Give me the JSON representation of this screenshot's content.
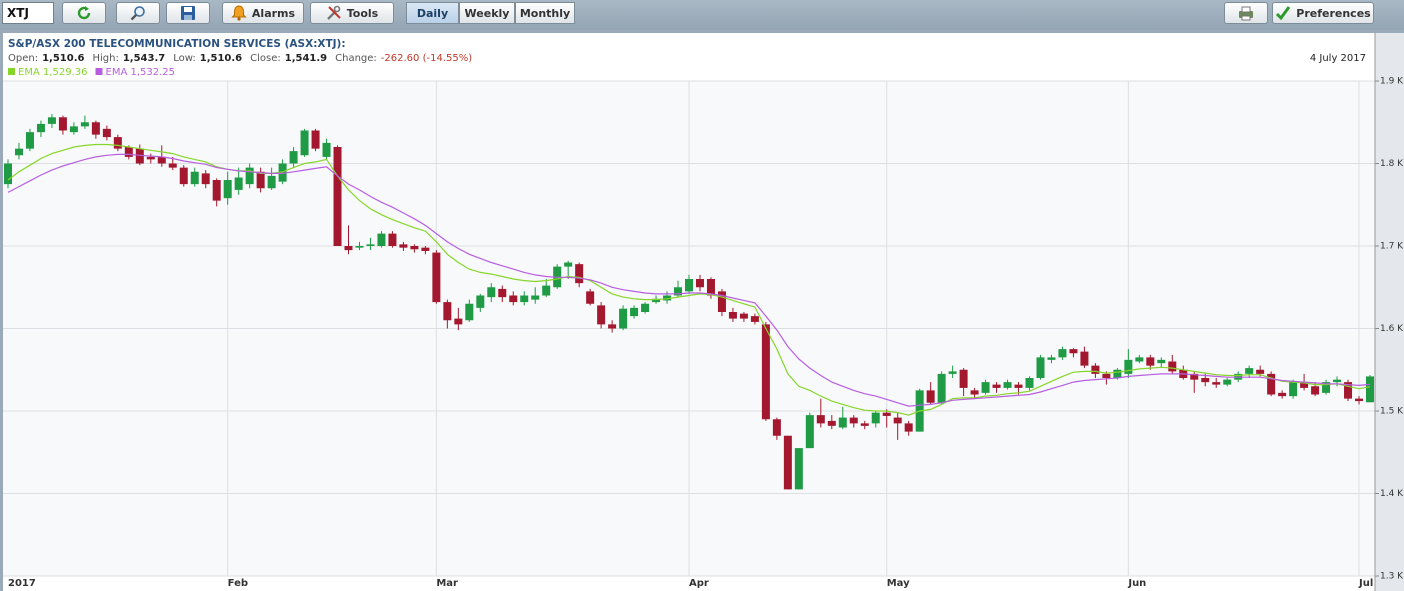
{
  "toolbar": {
    "symbol": "XTJ",
    "alarms": "Alarms",
    "tools": "Tools",
    "periods": [
      "Daily",
      "Weekly",
      "Monthly"
    ],
    "preferences": "Preferences"
  },
  "chart_data": {
    "type": "candlestick",
    "title": "S&P/ASX 200 TELECOMMUNICATION SERVICES (ASX:XTJ):",
    "quote": [
      {
        "label": "Open:",
        "value": "1,510.6"
      },
      {
        "label": "High:",
        "value": "1,543.7"
      },
      {
        "label": "Low:",
        "value": "1,510.6"
      },
      {
        "label": "Close:",
        "value": "1,541.9"
      }
    ],
    "change_label": "Change:",
    "change": "-262.60 (-14.55%)",
    "change_color": "#c0392b",
    "date": "4 July 2017",
    "categories": [
      "2017",
      null,
      null,
      null,
      null,
      null,
      null,
      null,
      null,
      null,
      null,
      null,
      null,
      null,
      null,
      null,
      null,
      null,
      null,
      null,
      "Feb",
      null,
      null,
      null,
      null,
      null,
      null,
      null,
      null,
      null,
      null,
      null,
      null,
      null,
      null,
      null,
      null,
      null,
      null,
      "Mar",
      null,
      null,
      null,
      null,
      null,
      null,
      null,
      null,
      null,
      null,
      null,
      null,
      null,
      null,
      null,
      null,
      null,
      null,
      null,
      null,
      null,
      null,
      "Apr",
      null,
      null,
      null,
      null,
      null,
      null,
      null,
      null,
      null,
      null,
      null,
      null,
      null,
      null,
      null,
      null,
      null,
      "May",
      null,
      null,
      null,
      null,
      null,
      null,
      null,
      null,
      null,
      null,
      null,
      null,
      null,
      null,
      null,
      null,
      null,
      null,
      null,
      null,
      null,
      "Jun",
      null,
      null,
      null,
      null,
      null,
      null,
      null,
      null,
      null,
      null,
      null,
      null,
      null,
      null,
      null,
      null,
      null,
      null,
      null,
      null,
      "Jul",
      null
    ],
    "open": [
      1775,
      1810,
      1818,
      1838,
      1848,
      1856,
      1838,
      1845,
      1850,
      1842,
      1832,
      1820,
      1818,
      1808,
      1808,
      1800,
      1795,
      1775,
      1788,
      1780,
      1758,
      1768,
      1775,
      1790,
      1770,
      1778,
      1800,
      1810,
      1840,
      1808,
      1820,
      1700,
      1698,
      1700,
      1700,
      1715,
      1702,
      1700,
      1698,
      1692,
      1632,
      1612,
      1610,
      1625,
      1638,
      1648,
      1640,
      1632,
      1635,
      1640,
      1650,
      1675,
      1678,
      1645,
      1628,
      1605,
      1600,
      1615,
      1620,
      1632,
      1634,
      1640,
      1645,
      1660,
      1660,
      1645,
      1620,
      1618,
      1615,
      1605,
      1490,
      1470,
      1405,
      1455,
      1495,
      1488,
      1480,
      1492,
      1485,
      1485,
      1498,
      1492,
      1485,
      1475,
      1525,
      1510,
      1545,
      1550,
      1525,
      1522,
      1532,
      1528,
      1532,
      1528,
      1540,
      1562,
      1565,
      1575,
      1572,
      1555,
      1545,
      1540,
      1545,
      1560,
      1565,
      1558,
      1560,
      1550,
      1545,
      1540,
      1535,
      1532,
      1538,
      1545,
      1550,
      1545,
      1522,
      1518,
      1535,
      1530,
      1522,
      1535,
      1535,
      1515,
      1510.6
    ],
    "high": [
      1805,
      1825,
      1842,
      1852,
      1860,
      1858,
      1850,
      1858,
      1852,
      1846,
      1835,
      1822,
      1823,
      1812,
      1822,
      1808,
      1798,
      1795,
      1792,
      1782,
      1790,
      1795,
      1800,
      1795,
      1795,
      1805,
      1820,
      1842,
      1842,
      1830,
      1822,
      1725,
      1705,
      1710,
      1718,
      1718,
      1705,
      1702,
      1700,
      1695,
      1635,
      1625,
      1635,
      1642,
      1655,
      1652,
      1645,
      1645,
      1650,
      1660,
      1678,
      1682,
      1680,
      1648,
      1632,
      1610,
      1628,
      1628,
      1632,
      1640,
      1645,
      1658,
      1665,
      1665,
      1662,
      1648,
      1625,
      1620,
      1618,
      1608,
      1492,
      1470,
      1455,
      1498,
      1515,
      1495,
      1505,
      1495,
      1488,
      1500,
      1502,
      1498,
      1488,
      1527,
      1535,
      1548,
      1555,
      1552,
      1528,
      1538,
      1535,
      1538,
      1535,
      1542,
      1568,
      1568,
      1578,
      1576,
      1578,
      1558,
      1548,
      1552,
      1575,
      1568,
      1568,
      1565,
      1568,
      1555,
      1548,
      1545,
      1540,
      1540,
      1548,
      1555,
      1555,
      1548,
      1525,
      1538,
      1545,
      1535,
      1538,
      1542,
      1538,
      1518,
      1543.7
    ],
    "low": [
      1770,
      1805,
      1815,
      1832,
      1843,
      1835,
      1835,
      1842,
      1830,
      1828,
      1815,
      1805,
      1798,
      1800,
      1796,
      1792,
      1772,
      1772,
      1770,
      1748,
      1750,
      1762,
      1770,
      1765,
      1768,
      1775,
      1795,
      1808,
      1815,
      1805,
      1700,
      1690,
      1695,
      1695,
      1698,
      1698,
      1694,
      1692,
      1690,
      1630,
      1600,
      1598,
      1608,
      1620,
      1632,
      1632,
      1628,
      1628,
      1630,
      1638,
      1648,
      1660,
      1650,
      1628,
      1600,
      1595,
      1598,
      1612,
      1618,
      1630,
      1630,
      1638,
      1642,
      1645,
      1636,
      1615,
      1608,
      1608,
      1605,
      1488,
      1465,
      1405,
      1405,
      1455,
      1480,
      1478,
      1478,
      1480,
      1478,
      1480,
      1480,
      1465,
      1470,
      1475,
      1508,
      1508,
      1540,
      1518,
      1515,
      1520,
      1522,
      1526,
      1520,
      1525,
      1538,
      1558,
      1562,
      1565,
      1552,
      1540,
      1532,
      1538,
      1540,
      1558,
      1550,
      1552,
      1545,
      1538,
      1522,
      1530,
      1528,
      1530,
      1535,
      1540,
      1542,
      1518,
      1515,
      1515,
      1525,
      1518,
      1520,
      1530,
      1512,
      1508,
      1510.6
    ],
    "close": [
      1800,
      1818,
      1838,
      1848,
      1856,
      1840,
      1845,
      1850,
      1835,
      1832,
      1818,
      1808,
      1800,
      1805,
      1800,
      1795,
      1775,
      1790,
      1775,
      1755,
      1780,
      1783,
      1795,
      1770,
      1785,
      1800,
      1815,
      1840,
      1818,
      1825,
      1700,
      1695,
      1700,
      1702,
      1715,
      1700,
      1698,
      1696,
      1694,
      1632,
      1610,
      1605,
      1630,
      1640,
      1650,
      1638,
      1632,
      1640,
      1640,
      1652,
      1675,
      1680,
      1655,
      1630,
      1605,
      1600,
      1624,
      1625,
      1630,
      1636,
      1640,
      1650,
      1660,
      1650,
      1640,
      1620,
      1612,
      1612,
      1608,
      1490,
      1470,
      1405,
      1455,
      1495,
      1485,
      1482,
      1492,
      1485,
      1482,
      1498,
      1494,
      1485,
      1475,
      1525,
      1510,
      1545,
      1548,
      1528,
      1520,
      1535,
      1528,
      1535,
      1528,
      1540,
      1565,
      1565,
      1575,
      1570,
      1555,
      1545,
      1540,
      1550,
      1562,
      1565,
      1555,
      1562,
      1548,
      1540,
      1538,
      1535,
      1532,
      1538,
      1545,
      1552,
      1545,
      1520,
      1518,
      1535,
      1528,
      1520,
      1535,
      1538,
      1515,
      1512,
      1541.9
    ],
    "up_color": "#1f9a45",
    "down_color": "#a3182f",
    "series": [
      {
        "name": "EMA 1,529.36",
        "color": "#86d62a",
        "values": [
          1780,
          1790,
          1798,
          1806,
          1812,
          1816,
          1820,
          1822,
          1823,
          1823,
          1822,
          1820,
          1818,
          1816,
          1814,
          1812,
          1808,
          1805,
          1802,
          1796,
          1793,
          1791,
          1791,
          1788,
          1788,
          1790,
          1795,
          1800,
          1802,
          1805,
          1785,
          1768,
          1755,
          1745,
          1738,
          1732,
          1727,
          1722,
          1718,
          1705,
          1690,
          1680,
          1672,
          1668,
          1666,
          1663,
          1660,
          1658,
          1657,
          1658,
          1660,
          1663,
          1662,
          1658,
          1650,
          1642,
          1638,
          1636,
          1635,
          1635,
          1636,
          1638,
          1640,
          1642,
          1641,
          1638,
          1634,
          1630,
          1626,
          1600,
          1575,
          1545,
          1530,
          1525,
          1518,
          1512,
          1508,
          1504,
          1501,
          1500,
          1500,
          1498,
          1495,
          1500,
          1502,
          1508,
          1515,
          1516,
          1516,
          1518,
          1519,
          1521,
          1522,
          1524,
          1530,
          1536,
          1542,
          1547,
          1548,
          1548,
          1546,
          1547,
          1549,
          1551,
          1552,
          1553,
          1552,
          1550,
          1548,
          1546,
          1544,
          1543,
          1543,
          1544,
          1544,
          1540,
          1536,
          1535,
          1534,
          1532,
          1532,
          1533,
          1530,
          1527,
          1529.36
        ]
      },
      {
        "name": "EMA 1,532.25",
        "color": "#b75ee0",
        "values": [
          1765,
          1772,
          1779,
          1786,
          1792,
          1797,
          1801,
          1805,
          1808,
          1810,
          1811,
          1811,
          1810,
          1809,
          1808,
          1806,
          1803,
          1801,
          1799,
          1795,
          1793,
          1791,
          1790,
          1789,
          1788,
          1788,
          1790,
          1792,
          1794,
          1796,
          1785,
          1775,
          1768,
          1760,
          1753,
          1747,
          1740,
          1733,
          1725,
          1715,
          1705,
          1697,
          1690,
          1685,
          1680,
          1676,
          1672,
          1668,
          1665,
          1663,
          1662,
          1662,
          1661,
          1659,
          1655,
          1650,
          1647,
          1645,
          1643,
          1642,
          1642,
          1642,
          1643,
          1643,
          1642,
          1640,
          1637,
          1634,
          1631,
          1615,
          1598,
          1578,
          1563,
          1552,
          1543,
          1535,
          1530,
          1525,
          1521,
          1518,
          1514,
          1510,
          1506,
          1507,
          1508,
          1510,
          1513,
          1514,
          1515,
          1516,
          1517,
          1518,
          1519,
          1520,
          1523,
          1527,
          1531,
          1535,
          1537,
          1538,
          1539,
          1540,
          1542,
          1543,
          1544,
          1545,
          1545,
          1545,
          1544,
          1543,
          1542,
          1541,
          1541,
          1541,
          1541,
          1539,
          1537,
          1536,
          1535,
          1534,
          1533,
          1533,
          1532,
          1531,
          1532.25
        ]
      }
    ],
    "ylim": [
      1300,
      1900
    ],
    "yticks": [
      {
        "value": 1300,
        "label": "1.3 K"
      },
      {
        "value": 1400,
        "label": "1.4 K"
      },
      {
        "value": 1500,
        "label": "1.5 K"
      },
      {
        "value": 1600,
        "label": "1.6 K"
      },
      {
        "value": 1700,
        "label": "1.7 K"
      },
      {
        "value": 1800,
        "label": "1.8 K"
      },
      {
        "value": 1900,
        "label": "1.9 K"
      }
    ],
    "grid": true
  }
}
